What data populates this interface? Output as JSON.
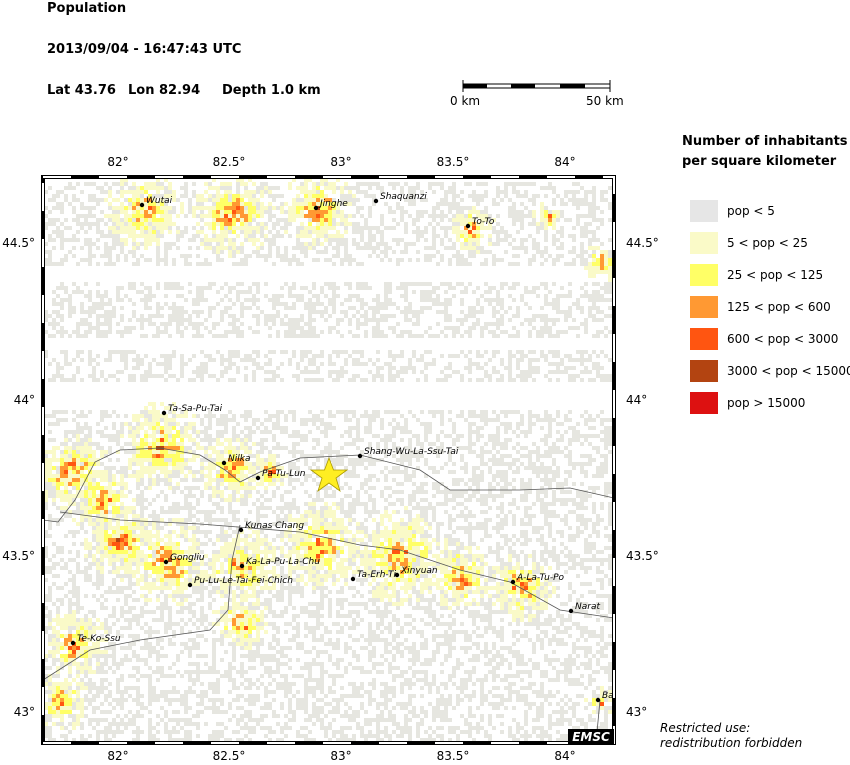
{
  "header": {
    "title": "Population",
    "datetime": "2013/09/04 - 16:47:43 UTC",
    "lat": "Lat 43.76",
    "lon": "Lon  82.94",
    "depth": "Depth  1.0 km"
  },
  "scale_bar": {
    "start": "0 km",
    "end": "50 km"
  },
  "legend": {
    "title_line1": "Number of inhabitants",
    "title_line2": "per square kilometer",
    "items": [
      {
        "label": "pop < 5",
        "color": "#e6e6e6"
      },
      {
        "label": "5 < pop < 25",
        "color": "#fafac8"
      },
      {
        "label": "25 < pop < 125",
        "color": "#ffff66"
      },
      {
        "label": "125 < pop < 600",
        "color": "#ff9933"
      },
      {
        "label": "600 < pop < 3000",
        "color": "#ff5511"
      },
      {
        "label": "3000 < pop < 15000",
        "color": "#b34411"
      },
      {
        "label": "pop > 15000",
        "color": "#dd1111"
      }
    ]
  },
  "map": {
    "lon_ticks": [
      "82°",
      "82.5°",
      "83°",
      "83.5°",
      "84°"
    ],
    "lat_ticks": [
      "44.5°",
      "44°",
      "43.5°",
      "43°"
    ],
    "places": [
      "Wutai",
      "Jinghe",
      "Shaquanzi",
      "To-To",
      "Ta-Sa-Pu-Tai",
      "Nilka",
      "Pa-Tu-Lun",
      "Shang-Wu-La-Ssu-Tai",
      "Kunas Chang",
      "Gongliu",
      "Ka-La-Pu-La-Chu",
      "Pu-Lu-Le-Tai-Fei-Chich",
      "Ta-Erh-Ti",
      "Xinyuan",
      "A-La-Tu-Po",
      "Narat",
      "Te-Ko-Ssu",
      "Ba"
    ],
    "badge": "EMSC"
  },
  "notice": {
    "line1": "Restricted use:",
    "line2": "redistribution forbidden"
  }
}
